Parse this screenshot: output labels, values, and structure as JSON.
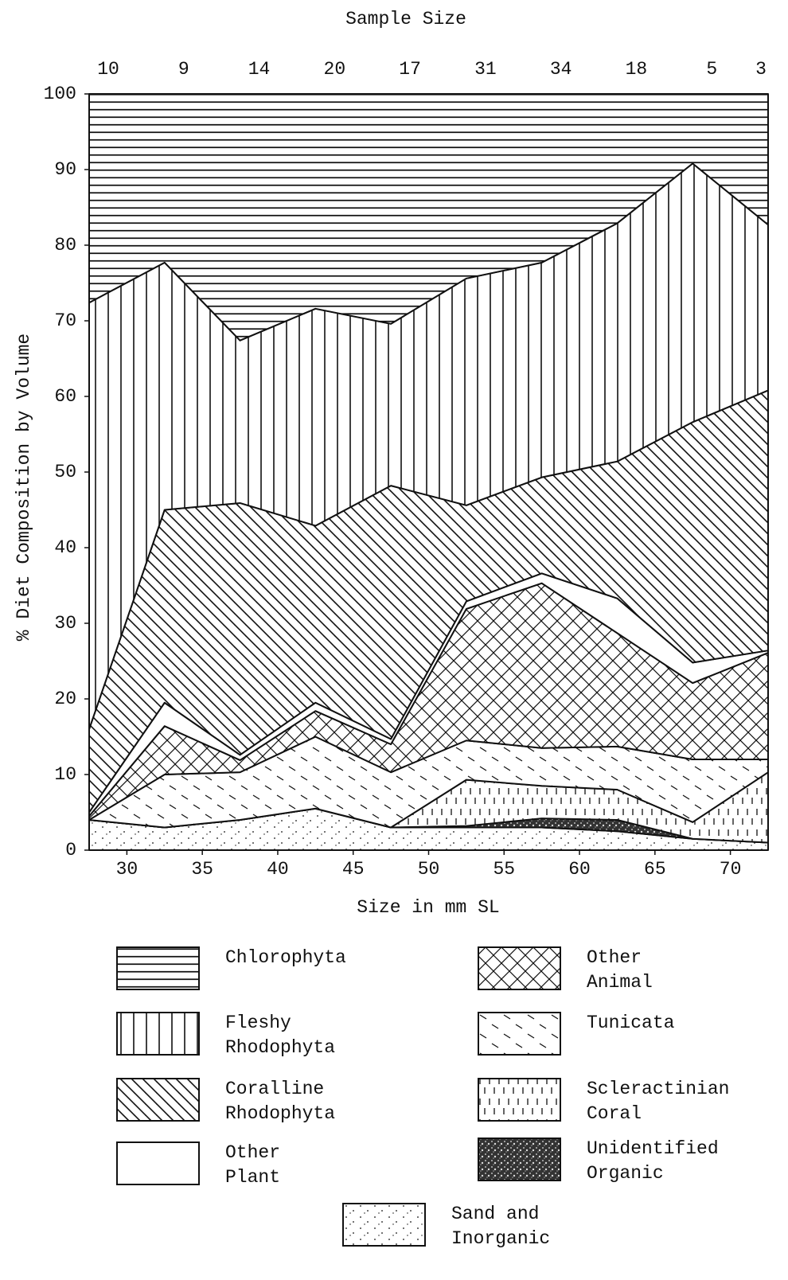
{
  "chart_data": {
    "type": "stacked_area",
    "x2label": "Sample Size",
    "sample_sizes": [
      10,
      9,
      14,
      20,
      17,
      31,
      34,
      18,
      5,
      3
    ],
    "ylabel": "% Diet Composition by Volume",
    "xlabel": "Size in mm SL",
    "x": [
      27.5,
      32.5,
      37.5,
      42.5,
      47.5,
      52.5,
      57.5,
      62.5,
      67.5,
      72.5
    ],
    "xlim": [
      27.5,
      72.5
    ],
    "xticks": [
      30,
      35,
      40,
      45,
      50,
      55,
      60,
      65,
      70
    ],
    "ylim": [
      0,
      100
    ],
    "yticks": [
      0,
      10,
      20,
      30,
      40,
      50,
      60,
      70,
      80,
      90,
      100
    ],
    "grid": false,
    "series": [
      {
        "name": "Chlorophyta",
        "pattern": "horizontal",
        "color": "#111111",
        "values": [
          27.6,
          22.3,
          32.6,
          28.4,
          30.4,
          24.4,
          22.3,
          17.1,
          9.2,
          17.3
        ]
      },
      {
        "name": "Fleshy Rhodophyta",
        "pattern": "vertical",
        "color": "#111111",
        "values": [
          56.4,
          32.7,
          21.5,
          28.7,
          21.4,
          30,
          28.4,
          31.5,
          34.2,
          21.9
        ]
      },
      {
        "name": "Coralline Rhodophyta",
        "pattern": "diagonal",
        "color": "#111111",
        "values": [
          11,
          25.5,
          33.3,
          23.4,
          33.5,
          12.7,
          12.7,
          18.1,
          31.8,
          34.4
        ]
      },
      {
        "name": "Other Plant",
        "pattern": "none",
        "color": "#111111",
        "values": [
          0.5,
          3.1,
          0.7,
          1.1,
          0.7,
          1,
          1.3,
          4.6,
          2.7,
          0.3
        ]
      },
      {
        "name": "Other Animal",
        "pattern": "crosshatch",
        "color": "#111111",
        "values": [
          0.5,
          6.4,
          1.6,
          3.4,
          3.7,
          17.4,
          21.8,
          15,
          10.1,
          14.1
        ]
      },
      {
        "name": "Tunicata",
        "pattern": "dashes",
        "color": "#111111",
        "values": [
          0,
          7,
          6.3,
          9.5,
          7.3,
          5.2,
          5,
          5.7,
          8.3,
          1.7
        ]
      },
      {
        "name": "Scleractinian Coral",
        "pattern": "vertical-dashes",
        "color": "#111111",
        "values": [
          0,
          0,
          0,
          0,
          0,
          6.1,
          4.3,
          4,
          2.2,
          9.3
        ]
      },
      {
        "name": "Unidentified Organic",
        "pattern": "dense",
        "color": "#111111",
        "values": [
          0,
          0,
          0,
          0,
          0,
          0.2,
          1.2,
          1.5,
          0,
          0
        ]
      },
      {
        "name": "Sand and Inorganic",
        "pattern": "dots",
        "color": "#111111",
        "values": [
          4,
          3,
          4,
          5.5,
          3,
          3,
          3,
          2.5,
          1.5,
          1
        ]
      }
    ]
  }
}
